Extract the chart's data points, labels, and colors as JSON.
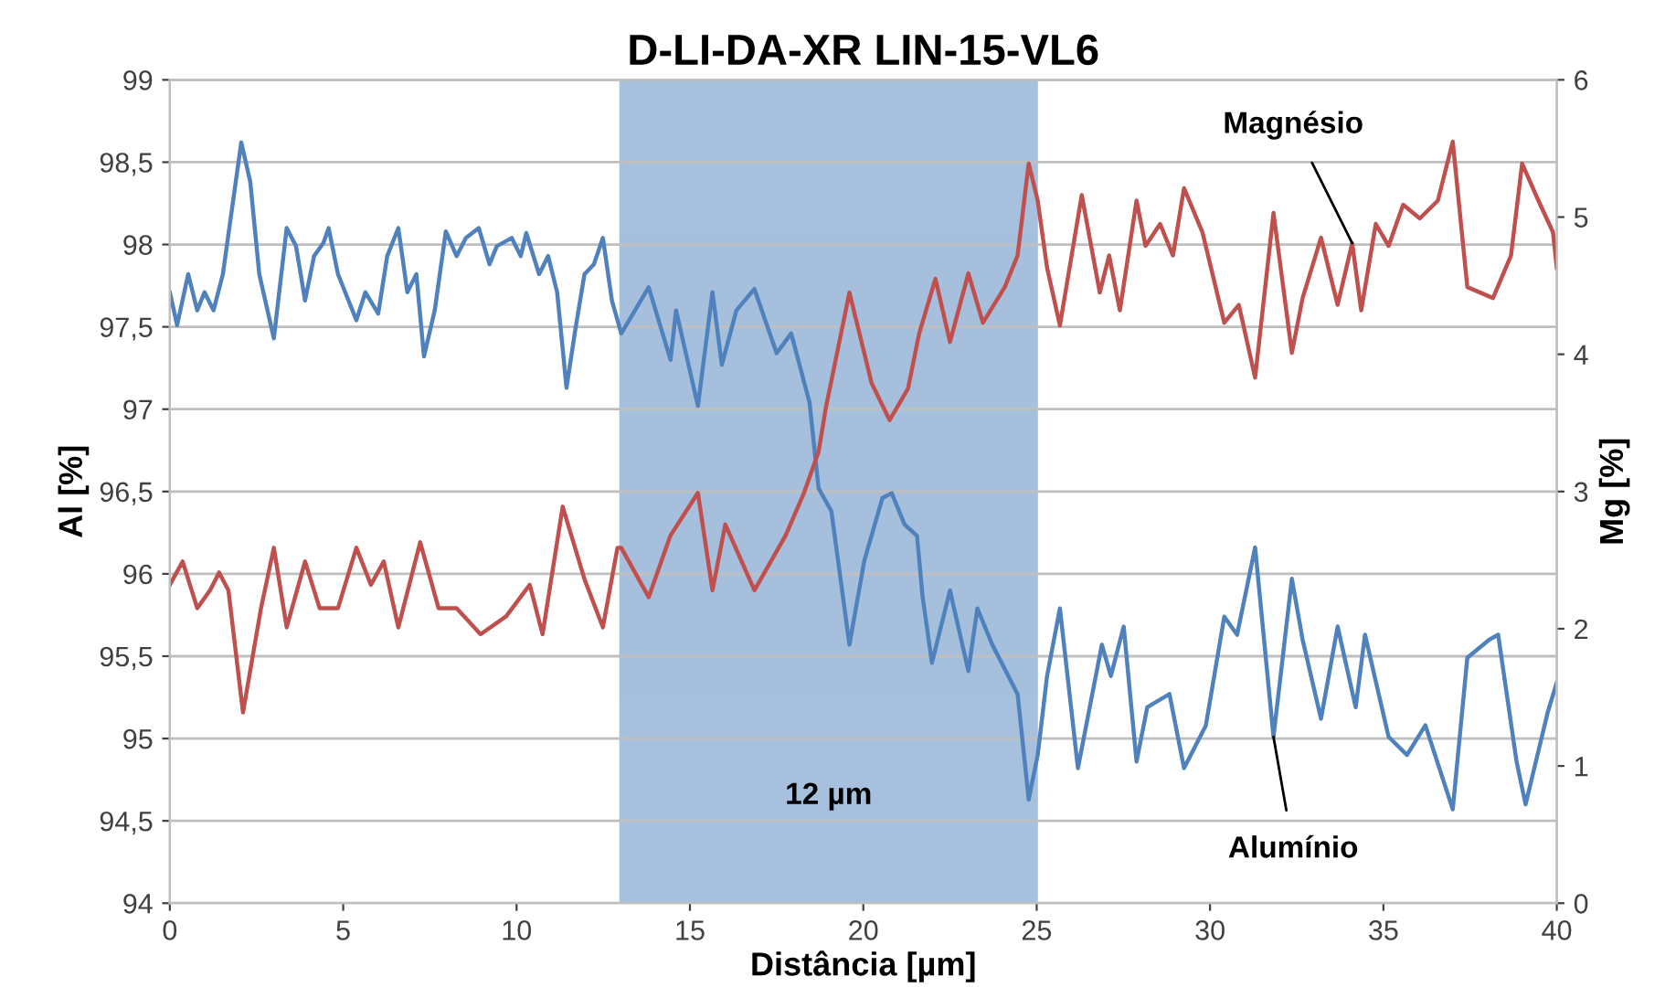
{
  "chart_data": {
    "type": "line",
    "title": "D-LI-DA-XR LIN-15-VL6",
    "xlabel": "Distância [µm]",
    "ylabel": "Al [%]",
    "y2label": "Mg [%]",
    "xlim": [
      0,
      40
    ],
    "xticks": [
      0,
      5,
      10,
      15,
      20,
      25,
      30,
      35,
      40
    ],
    "ylim": [
      94,
      99
    ],
    "yticks": [
      94,
      {
        "value": 94.5,
        "label": "94,5"
      },
      95,
      {
        "value": 95.5,
        "label": "95,5"
      },
      96,
      {
        "value": 96.5,
        "label": "96,5"
      },
      97,
      {
        "value": 97.5,
        "label": "97,5"
      },
      98,
      {
        "value": 98.5,
        "label": "98,5"
      },
      99
    ],
    "y2lim": [
      0,
      6
    ],
    "y2ticks": [
      0,
      1,
      2,
      3,
      4,
      5,
      6
    ],
    "grid": "y",
    "legend": false,
    "marker": "none",
    "line_style": "solid",
    "bands": [
      {
        "axis": "x",
        "from": 13,
        "to": 25,
        "label": "12 µm",
        "color": "#4f81bd"
      }
    ],
    "series": [
      {
        "name": "Alumínio",
        "color": "#4f81bd",
        "x": [
          0,
          0.21,
          0.53,
          0.79,
          1.0,
          1.26,
          1.53,
          2.06,
          2.32,
          2.58,
          3.0,
          3.37,
          3.64,
          3.9,
          4.16,
          4.43,
          4.58,
          4.85,
          5.38,
          5.64,
          6.01,
          6.27,
          6.59,
          6.85,
          7.11,
          7.33,
          7.64,
          7.96,
          8.27,
          8.54,
          8.91,
          9.22,
          9.43,
          9.86,
          10.12,
          10.28,
          10.65,
          10.91,
          11.17,
          11.44,
          11.7,
          11.96,
          12.23,
          12.49,
          12.75,
          13.02,
          13.81,
          14.44,
          14.6,
          15.23,
          15.65,
          15.92,
          16.34,
          16.86,
          17.5,
          17.92,
          18.45,
          18.71,
          19.08,
          19.6,
          20.03,
          20.55,
          20.82,
          21.19,
          21.55,
          21.71,
          21.98,
          22.5,
          23.03,
          23.29,
          23.72,
          24.45,
          24.77,
          25.03,
          25.3,
          25.67,
          26.19,
          26.88,
          27.14,
          27.51,
          27.88,
          28.19,
          28.83,
          29.25,
          29.88,
          30.41,
          30.78,
          31.3,
          31.83,
          32.36,
          32.67,
          33.2,
          33.68,
          34.2,
          34.47,
          35.15,
          35.68,
          36.21,
          37.0,
          37.42,
          38.05,
          38.31,
          38.84,
          39.1,
          39.74,
          40.0
        ],
        "values": [
          97.71,
          97.51,
          97.82,
          97.6,
          97.71,
          97.6,
          97.82,
          98.62,
          98.38,
          97.82,
          97.43,
          98.1,
          97.99,
          97.66,
          97.93,
          98.01,
          98.1,
          97.82,
          97.54,
          97.71,
          97.58,
          97.93,
          98.1,
          97.71,
          97.82,
          97.32,
          97.6,
          98.08,
          97.93,
          98.04,
          98.1,
          97.88,
          97.99,
          98.04,
          97.93,
          98.07,
          97.82,
          97.93,
          97.71,
          97.13,
          97.49,
          97.82,
          97.88,
          98.04,
          97.66,
          97.46,
          97.74,
          97.3,
          97.6,
          97.02,
          97.71,
          97.27,
          97.6,
          97.73,
          97.34,
          97.46,
          97.04,
          96.52,
          96.38,
          95.57,
          96.08,
          96.46,
          96.49,
          96.3,
          96.23,
          95.86,
          95.46,
          95.9,
          95.41,
          95.79,
          95.57,
          95.27,
          94.63,
          94.9,
          95.38,
          95.79,
          94.82,
          95.57,
          95.38,
          95.68,
          94.86,
          95.19,
          95.27,
          94.82,
          95.08,
          95.74,
          95.63,
          96.16,
          95.01,
          95.97,
          95.6,
          95.12,
          95.68,
          95.19,
          95.63,
          95.01,
          94.9,
          95.08,
          94.57,
          95.49,
          95.6,
          95.63,
          94.86,
          94.6,
          95.16,
          95.34
        ]
      },
      {
        "name": "Magnésio",
        "color": "#c0504d",
        "axis": "y2",
        "x": [
          0,
          0.37,
          0.79,
          1.16,
          1.42,
          1.69,
          2.11,
          2.63,
          3.0,
          3.37,
          3.9,
          4.32,
          4.85,
          5.38,
          5.8,
          6.17,
          6.59,
          7.22,
          7.75,
          8.27,
          8.96,
          9.7,
          10.38,
          10.75,
          11.33,
          11.96,
          12.49,
          12.91,
          13.02,
          13.81,
          14.44,
          15.23,
          15.65,
          16.02,
          16.86,
          17.76,
          18.29,
          18.71,
          18.92,
          19.6,
          20.24,
          20.76,
          21.29,
          21.61,
          22.08,
          22.5,
          23.03,
          23.45,
          24.08,
          24.45,
          24.77,
          25.03,
          25.3,
          25.67,
          26.3,
          26.82,
          27.09,
          27.4,
          27.88,
          28.14,
          28.56,
          28.93,
          29.25,
          29.78,
          30.41,
          30.83,
          31.3,
          31.83,
          32.36,
          32.67,
          33.2,
          33.68,
          34.1,
          34.36,
          34.78,
          35.15,
          35.57,
          36.05,
          36.57,
          37.0,
          37.42,
          38.16,
          38.68,
          39.0,
          39.47,
          39.89,
          40.0
        ],
        "values": [
          2.32,
          2.49,
          2.15,
          2.28,
          2.41,
          2.28,
          1.39,
          2.15,
          2.59,
          2.01,
          2.49,
          2.15,
          2.15,
          2.59,
          2.32,
          2.49,
          2.01,
          2.63,
          2.15,
          2.15,
          1.96,
          2.09,
          2.32,
          1.96,
          2.89,
          2.36,
          2.01,
          2.59,
          2.59,
          2.23,
          2.68,
          2.99,
          2.28,
          2.76,
          2.28,
          2.68,
          2.99,
          3.29,
          3.61,
          4.45,
          3.79,
          3.52,
          3.75,
          4.15,
          4.55,
          4.09,
          4.59,
          4.23,
          4.49,
          4.72,
          5.39,
          5.12,
          4.63,
          4.21,
          5.16,
          4.45,
          4.72,
          4.32,
          5.12,
          4.79,
          4.95,
          4.72,
          5.21,
          4.89,
          4.23,
          4.36,
          3.83,
          5.03,
          4.01,
          4.41,
          4.85,
          4.36,
          4.81,
          4.32,
          4.95,
          4.79,
          5.09,
          4.99,
          5.12,
          5.55,
          4.49,
          4.41,
          4.72,
          5.39,
          5.12,
          4.89,
          4.63
        ]
      }
    ]
  }
}
